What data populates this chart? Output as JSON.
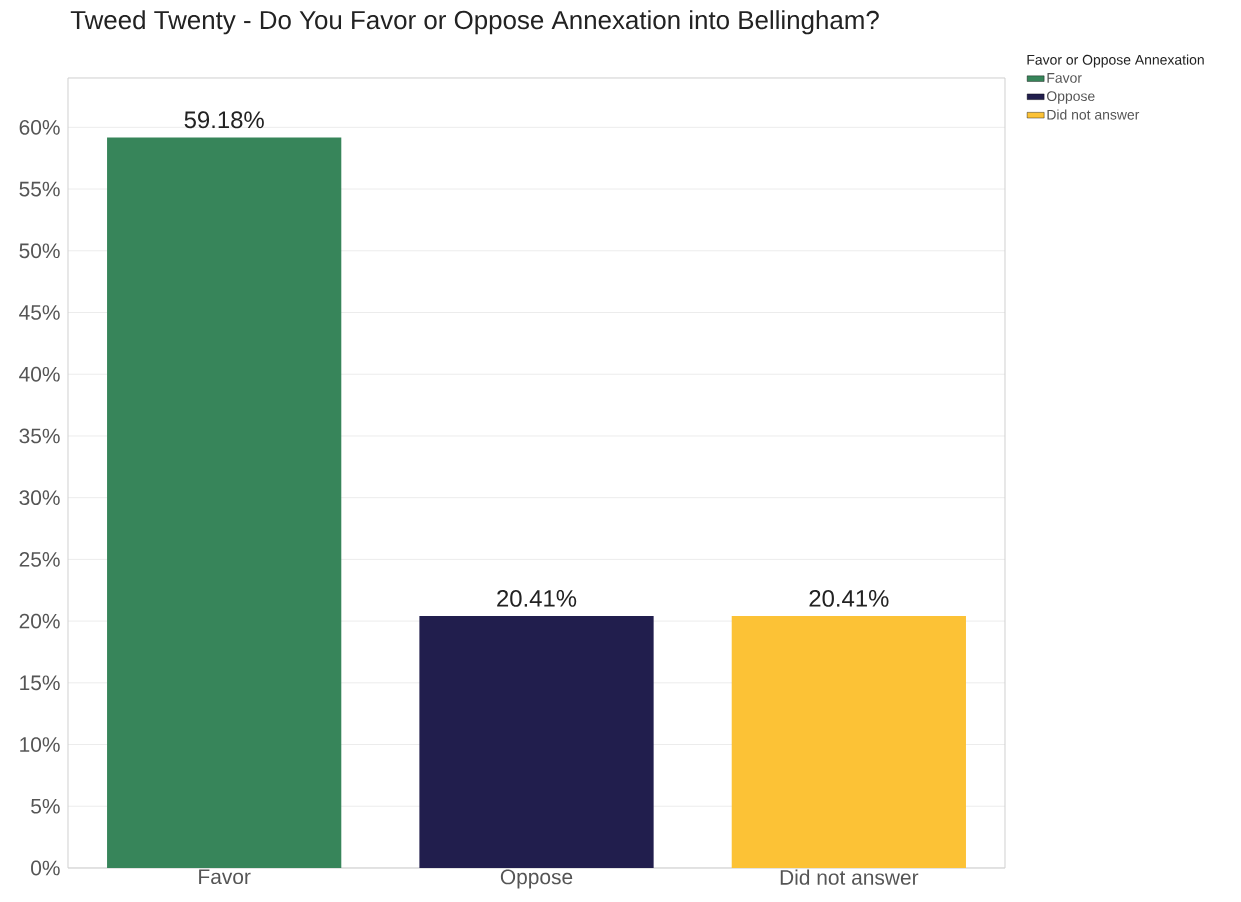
{
  "chart_data": {
    "type": "bar",
    "title": "Tweed Twenty - Do You Favor or Oppose Annexation into Bellingham?",
    "legend_title": "Favor or Oppose Annexation",
    "categories": [
      "Favor",
      "Oppose",
      "Did not answer"
    ],
    "series": [
      {
        "name": "Favor",
        "color": "#37855a",
        "values": [
          59.18,
          null,
          null
        ],
        "value_labels": [
          "59.18%",
          null,
          null
        ]
      },
      {
        "name": "Oppose",
        "color": "#211e4d",
        "values": [
          null,
          20.41,
          null
        ],
        "value_labels": [
          null,
          "20.41%",
          null
        ]
      },
      {
        "name": "Did not answer",
        "color": "#fcc236",
        "values": [
          null,
          null,
          20.41
        ],
        "value_labels": [
          null,
          null,
          "20.41%"
        ]
      }
    ],
    "ylim": [
      0,
      64
    ],
    "yticks": [
      {
        "value": 0,
        "label": "0%"
      },
      {
        "value": 5,
        "label": "5%"
      },
      {
        "value": 10,
        "label": "10%"
      },
      {
        "value": 15,
        "label": "15%"
      },
      {
        "value": 20,
        "label": "20%"
      },
      {
        "value": 25,
        "label": "25%"
      },
      {
        "value": 30,
        "label": "30%"
      },
      {
        "value": 35,
        "label": "35%"
      },
      {
        "value": 40,
        "label": "40%"
      },
      {
        "value": 45,
        "label": "45%"
      },
      {
        "value": 50,
        "label": "50%"
      },
      {
        "value": 55,
        "label": "55%"
      },
      {
        "value": 60,
        "label": "60%"
      }
    ],
    "grid": "y",
    "legend": "top right"
  }
}
